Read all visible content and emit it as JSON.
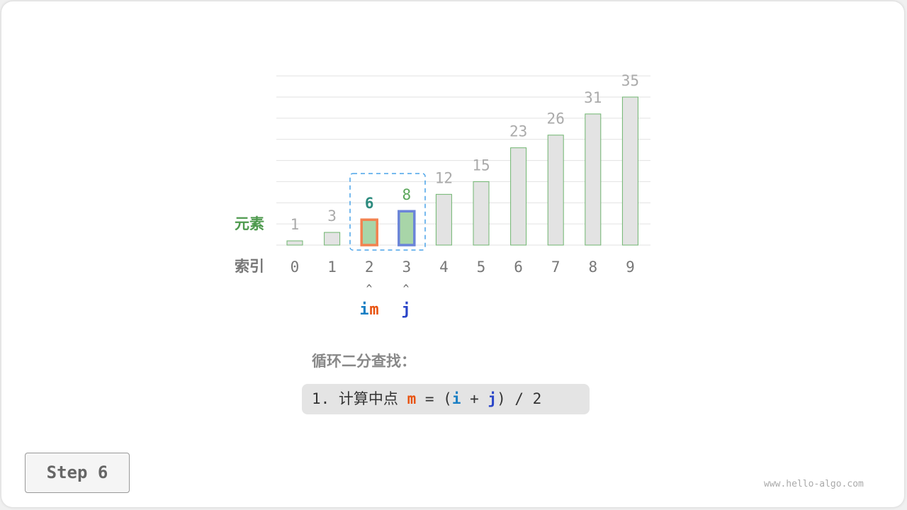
{
  "chart_data": {
    "type": "bar",
    "categories": [
      "0",
      "1",
      "2",
      "3",
      "4",
      "5",
      "6",
      "7",
      "8",
      "9"
    ],
    "values": [
      1,
      3,
      6,
      8,
      12,
      15,
      23,
      26,
      31,
      35
    ],
    "row_labels": {
      "element": "元素",
      "index": "索引"
    },
    "highlight": {
      "i": 2,
      "m": 2,
      "j": 3
    },
    "colors": {
      "bar_fill": "#e3e3e3",
      "bar_stroke": "#6fb56f",
      "range_fill": "#a8d5a8",
      "m_stroke": "#f2824f",
      "j_stroke": "#6b84d8",
      "m_value": "#2d8b7e",
      "j_value": "#5aa65a",
      "label_gray": "#aaaaaa",
      "element_label": "#4e9a4e"
    }
  },
  "pointers": {
    "i": "i",
    "m": "m",
    "j": "j",
    "arrow": "^"
  },
  "title": "循环二分查找：",
  "code": {
    "prefix": "1. 计算中点 ",
    "m": "m",
    "eq": " = (",
    "i": "i",
    "plus": " + ",
    "j": "j",
    "suffix": ") / 2"
  },
  "step_label": "Step 6",
  "watermark": "www.hello-algo.com"
}
